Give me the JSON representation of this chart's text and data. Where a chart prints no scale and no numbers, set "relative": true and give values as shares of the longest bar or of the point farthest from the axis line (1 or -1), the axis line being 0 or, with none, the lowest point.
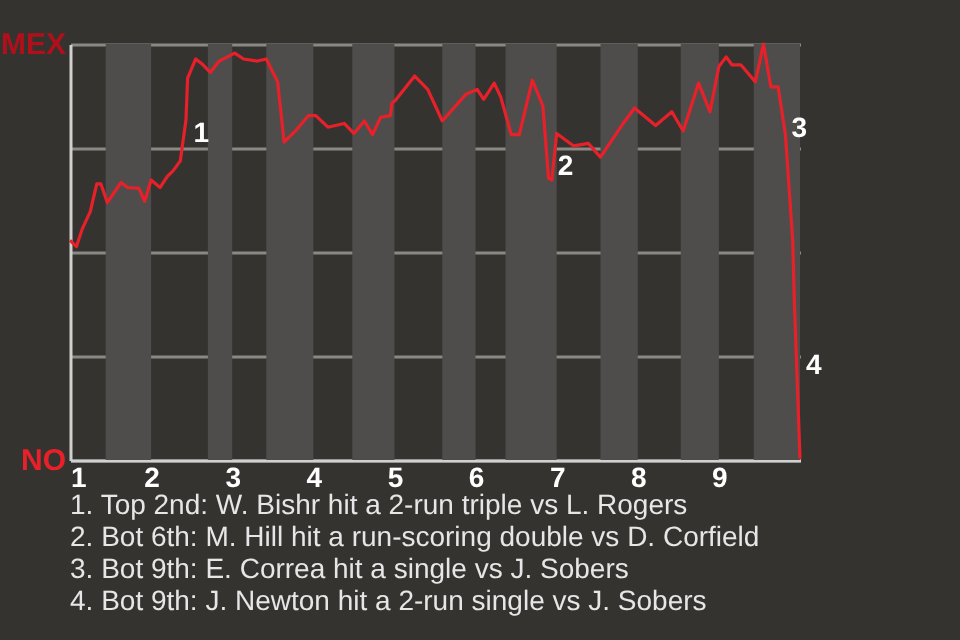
{
  "chart_data": {
    "type": "line",
    "relative": true,
    "grid": true,
    "marker": "none",
    "line_style": "solid",
    "xlim": [
      1,
      10
    ],
    "xticks": [
      1,
      2,
      3,
      4,
      5,
      6,
      7,
      8,
      9
    ],
    "bands": [
      {
        "axis": "x",
        "from": 1.44,
        "to": 2,
        "color": "#4e4d4b"
      },
      {
        "axis": "x",
        "from": 2.7,
        "to": 3,
        "color": "#4e4d4b"
      },
      {
        "axis": "x",
        "from": 3.42,
        "to": 4,
        "color": "#4e4d4b"
      },
      {
        "axis": "x",
        "from": 4.48,
        "to": 5,
        "color": "#4e4d4b"
      },
      {
        "axis": "x",
        "from": 5.59,
        "to": 6,
        "color": "#4e4d4b"
      },
      {
        "axis": "x",
        "from": 6.37,
        "to": 7,
        "color": "#4e4d4b"
      },
      {
        "axis": "x",
        "from": 7.54,
        "to": 8,
        "color": "#4e4d4b"
      },
      {
        "axis": "x",
        "from": 8.53,
        "to": 9,
        "color": "#4e4d4b"
      },
      {
        "axis": "x",
        "from": 9.43,
        "to": 10,
        "color": "#4e4d4b"
      }
    ],
    "series": [
      {
        "color": "#e8202a",
        "x": [
          1.0,
          1.08,
          1.15,
          1.25,
          1.33,
          1.38,
          1.46,
          1.63,
          1.71,
          1.85,
          1.92,
          2.0,
          2.11,
          2.2,
          2.27,
          2.36,
          2.43,
          2.45,
          2.55,
          2.64,
          2.73,
          2.84,
          3.03,
          3.14,
          3.31,
          3.42,
          3.56,
          3.64,
          3.78,
          3.94,
          4.03,
          4.18,
          4.38,
          4.5,
          4.63,
          4.73,
          4.83,
          4.95,
          4.97,
          5.01,
          5.25,
          5.41,
          5.59,
          5.88,
          6.02,
          6.1,
          6.23,
          6.31,
          6.44,
          6.54,
          6.7,
          6.83,
          6.9,
          6.94,
          7.0,
          7.21,
          7.39,
          7.54,
          7.82,
          7.96,
          8.22,
          8.42,
          8.56,
          8.75,
          8.89,
          9.0,
          9.09,
          9.16,
          9.27,
          9.45,
          9.55,
          9.64,
          9.73,
          9.82,
          9.91,
          9.93,
          10.0
        ],
        "values": [
          0.528,
          0.513,
          0.555,
          0.597,
          0.664,
          0.664,
          0.619,
          0.667,
          0.655,
          0.653,
          0.622,
          0.673,
          0.655,
          0.682,
          0.695,
          0.719,
          0.818,
          0.918,
          0.964,
          0.95,
          0.932,
          0.959,
          0.978,
          0.964,
          0.959,
          0.964,
          0.909,
          0.764,
          0.791,
          0.828,
          0.828,
          0.8,
          0.809,
          0.785,
          0.815,
          0.782,
          0.824,
          0.828,
          0.858,
          0.864,
          0.923,
          0.891,
          0.815,
          0.879,
          0.891,
          0.867,
          0.906,
          0.873,
          0.782,
          0.782,
          0.913,
          0.851,
          0.677,
          0.673,
          0.785,
          0.755,
          0.761,
          0.728,
          0.809,
          0.846,
          0.804,
          0.837,
          0.791,
          0.906,
          0.837,
          0.946,
          0.969,
          0.95,
          0.95,
          0.909,
          1,
          0.897,
          0.897,
          0.782,
          0.528,
          0.383,
          0.003
        ]
      }
    ],
    "annotations": [
      "MEX",
      "NO",
      {
        "text": "1",
        "x": 2.45,
        "y": 0.783
      },
      {
        "text": "2",
        "x": 6.94,
        "y": 0.704
      },
      {
        "text": "3",
        "x": 9.82,
        "y": 0.795
      },
      {
        "text": "4",
        "x": 10,
        "y": 0.227
      },
      "1. Top 2nd: W. Bishr hit a 2-run triple vs L. Rogers",
      "2. Bot 6th: M. Hill hit a run-scoring double vs D. Corfield",
      "3. Bot 9th: E. Correa hit a single vs J. Sobers",
      "4. Bot 9th: J. Newton hit a 2-run single vs J. Sobers"
    ]
  }
}
